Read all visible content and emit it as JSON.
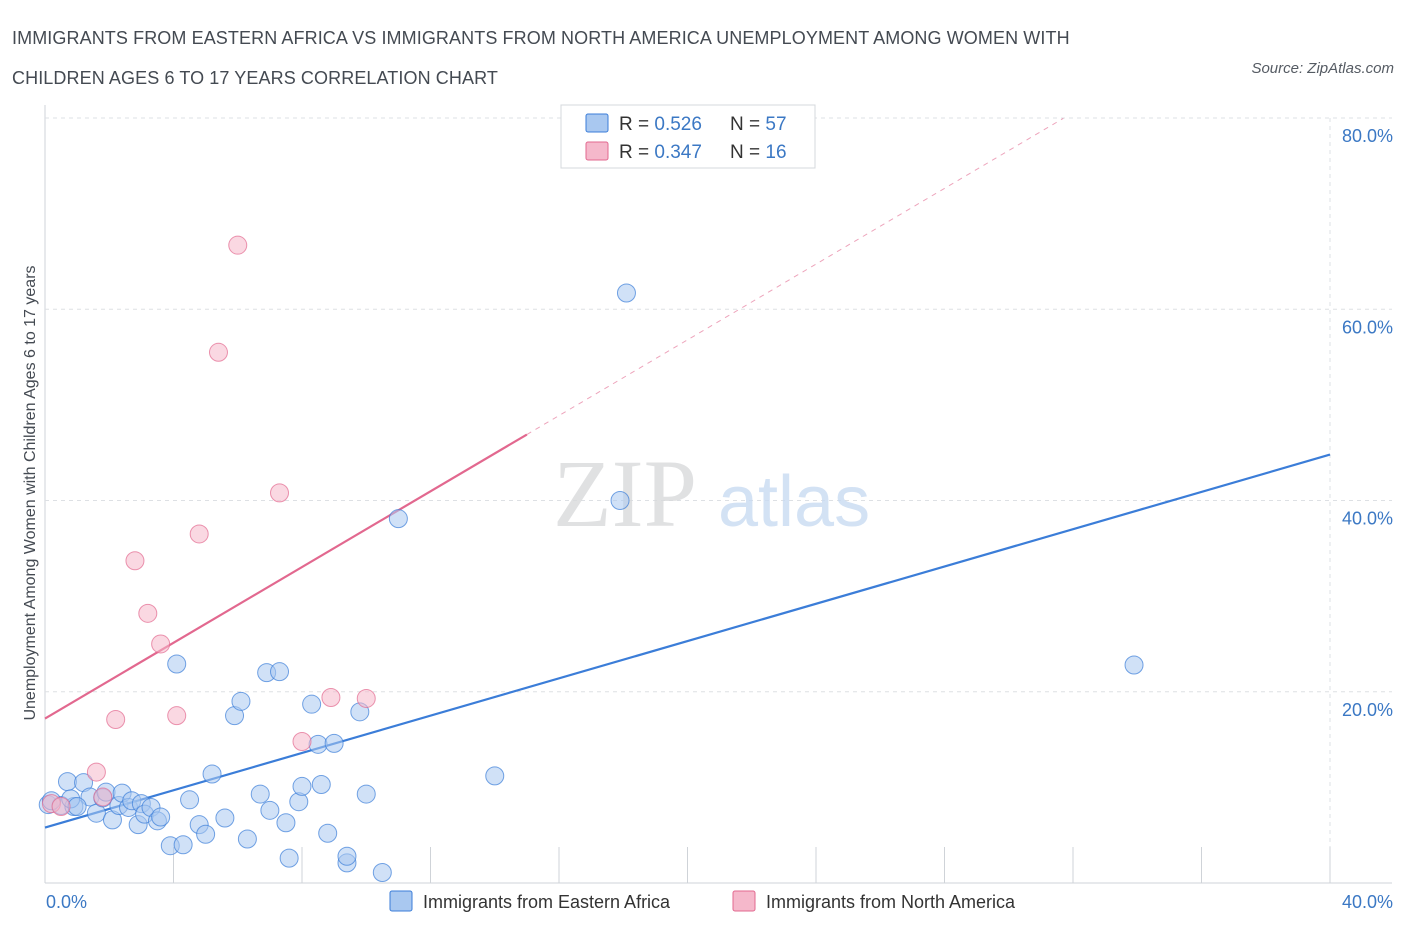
{
  "title": "IMMIGRANTS FROM EASTERN AFRICA VS IMMIGRANTS FROM NORTH AMERICA UNEMPLOYMENT AMONG WOMEN WITH CHILDREN AGES 6 TO 17 YEARS CORRELATION CHART",
  "source": "Source: ZipAtlas.com",
  "watermark": {
    "zip": "ZIP",
    "atlas": "atlas"
  },
  "legend_top": {
    "rows": [
      {
        "r_label": "R = ",
        "r_value": "0.526",
        "n_label": "N = ",
        "n_value": "57",
        "color": "#a9c8f0"
      },
      {
        "r_label": "R = ",
        "r_value": "0.347",
        "n_label": "N = ",
        "n_value": "16",
        "color": "#f5b8cb"
      }
    ]
  },
  "chart_data": {
    "type": "scatter",
    "ylabel": "Unemployment Among Women with Children Ages 6 to 17 years",
    "xlim": [
      0,
      40
    ],
    "ylim": [
      0,
      80
    ],
    "x_tick_labels": [
      "0.0%",
      "40.0%"
    ],
    "y_ticks": [
      {
        "value": 20,
        "label": "20.0%"
      },
      {
        "value": 40,
        "label": "40.0%"
      },
      {
        "value": 60,
        "label": "60.0%"
      },
      {
        "value": 80,
        "label": "80.0%"
      }
    ],
    "series": [
      {
        "name": "Immigrants from Eastern Africa",
        "color": "#3b7dd8",
        "fill": "#a9c8f0",
        "trend": {
          "x0": 0,
          "y0": 5.8,
          "x1": 40,
          "y1": 44.8,
          "dash_to_x": null
        },
        "points": [
          [
            0.1,
            8.2
          ],
          [
            0.5,
            8.1
          ],
          [
            0.7,
            10.6
          ],
          [
            0.9,
            8.0
          ],
          [
            1.2,
            10.5
          ],
          [
            1.4,
            9.0
          ],
          [
            1.6,
            7.3
          ],
          [
            1.8,
            8.9
          ],
          [
            1.9,
            9.5
          ],
          [
            2.1,
            6.6
          ],
          [
            2.3,
            8.1
          ],
          [
            2.4,
            9.4
          ],
          [
            2.6,
            7.9
          ],
          [
            2.7,
            8.6
          ],
          [
            2.9,
            6.1
          ],
          [
            3.0,
            8.3
          ],
          [
            3.1,
            7.2
          ],
          [
            3.3,
            7.9
          ],
          [
            3.5,
            6.5
          ],
          [
            3.6,
            6.9
          ],
          [
            3.9,
            3.9
          ],
          [
            4.1,
            22.9
          ],
          [
            4.3,
            4.0
          ],
          [
            4.5,
            8.7
          ],
          [
            4.8,
            6.1
          ],
          [
            5.0,
            5.1
          ],
          [
            5.2,
            11.4
          ],
          [
            5.6,
            6.8
          ],
          [
            5.9,
            17.5
          ],
          [
            6.1,
            19.0
          ],
          [
            6.3,
            4.6
          ],
          [
            6.7,
            9.3
          ],
          [
            6.9,
            22.0
          ],
          [
            7.0,
            7.6
          ],
          [
            7.3,
            22.1
          ],
          [
            7.5,
            6.3
          ],
          [
            7.6,
            2.6
          ],
          [
            7.9,
            8.5
          ],
          [
            8.0,
            10.1
          ],
          [
            8.3,
            18.7
          ],
          [
            8.5,
            14.5
          ],
          [
            8.6,
            10.3
          ],
          [
            8.8,
            5.2
          ],
          [
            9.0,
            14.6
          ],
          [
            9.4,
            2.1
          ],
          [
            9.4,
            2.8
          ],
          [
            9.8,
            17.9
          ],
          [
            10.0,
            9.3
          ],
          [
            10.5,
            1.1
          ],
          [
            11.0,
            38.1
          ],
          [
            14.0,
            11.2
          ],
          [
            17.9,
            40.0
          ],
          [
            18.1,
            61.7
          ],
          [
            33.9,
            22.8
          ],
          [
            0.2,
            8.6
          ],
          [
            0.8,
            8.8
          ],
          [
            1.0,
            8.0
          ]
        ]
      },
      {
        "name": "Immigrants from North America",
        "color": "#e2688f",
        "fill": "#f5b8cb",
        "trend": {
          "x0": 0,
          "y0": 17.2,
          "x1": 15.0,
          "y1": 46.9,
          "dash_to_x": 31.7
        },
        "points": [
          [
            0.2,
            8.3
          ],
          [
            0.5,
            8.0
          ],
          [
            1.6,
            11.6
          ],
          [
            1.8,
            9.0
          ],
          [
            2.2,
            17.1
          ],
          [
            2.8,
            33.7
          ],
          [
            3.2,
            28.2
          ],
          [
            3.6,
            25.0
          ],
          [
            4.1,
            17.5
          ],
          [
            4.8,
            36.5
          ],
          [
            5.4,
            55.5
          ],
          [
            6.0,
            66.7
          ],
          [
            7.3,
            40.8
          ],
          [
            8.0,
            14.8
          ],
          [
            8.9,
            19.4
          ],
          [
            10.0,
            19.3
          ]
        ]
      }
    ]
  }
}
